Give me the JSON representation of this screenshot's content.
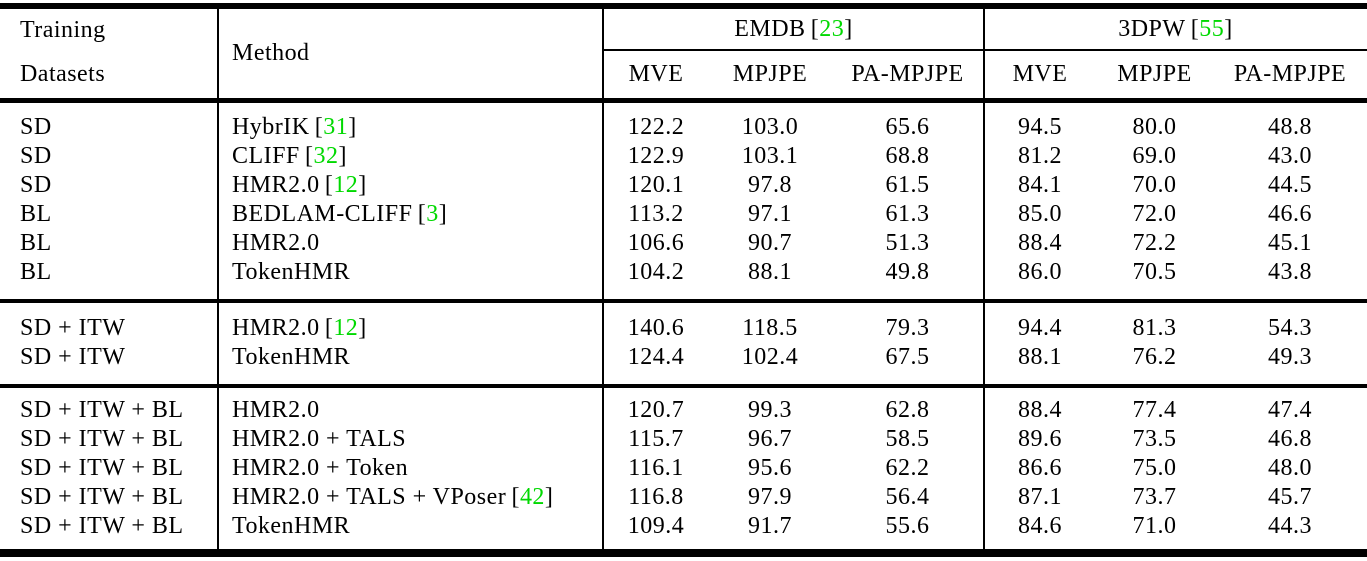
{
  "colors": {
    "citation_green": "#00D900",
    "text": "#000000",
    "background": "#ffffff"
  },
  "punctuation": {
    "bracket_open": "[",
    "bracket_close": "]"
  },
  "header": {
    "col1_line1": "Training",
    "col1_line2": "Datasets",
    "method_label": "Method",
    "groups": [
      {
        "name": "EMDB",
        "cite": "23",
        "subcols": [
          "MVE",
          "MPJPE",
          "PA-MPJPE"
        ]
      },
      {
        "name": "3DPW",
        "cite": "55",
        "subcols": [
          "MVE",
          "MPJPE",
          "PA-MPJPE"
        ]
      }
    ]
  },
  "blocks": [
    {
      "rows": [
        {
          "training": "SD",
          "method": "HybrIK",
          "cite": "31",
          "values": [
            "122.2",
            "103.0",
            "65.6",
            "94.5",
            "80.0",
            "48.8"
          ]
        },
        {
          "training": "SD",
          "method": "CLIFF",
          "cite": "32",
          "values": [
            "122.9",
            "103.1",
            "68.8",
            "81.2",
            "69.0",
            "43.0"
          ]
        },
        {
          "training": "SD",
          "method": "HMR2.0",
          "cite": "12",
          "values": [
            "120.1",
            "97.8",
            "61.5",
            "84.1",
            "70.0",
            "44.5"
          ]
        },
        {
          "training": "BL",
          "method": "BEDLAM-CLIFF",
          "cite": "3",
          "values": [
            "113.2",
            "97.1",
            "61.3",
            "85.0",
            "72.0",
            "46.6"
          ]
        },
        {
          "training": "BL",
          "method": "HMR2.0",
          "cite": null,
          "values": [
            "106.6",
            "90.7",
            "51.3",
            "88.4",
            "72.2",
            "45.1"
          ]
        },
        {
          "training": "BL",
          "method": "TokenHMR",
          "cite": null,
          "values": [
            "104.2",
            "88.1",
            "49.8",
            "86.0",
            "70.5",
            "43.8"
          ]
        }
      ]
    },
    {
      "rows": [
        {
          "training": "SD + ITW",
          "method": "HMR2.0",
          "cite": "12",
          "values": [
            "140.6",
            "118.5",
            "79.3",
            "94.4",
            "81.3",
            "54.3"
          ]
        },
        {
          "training": "SD + ITW",
          "method": "TokenHMR",
          "cite": null,
          "values": [
            "124.4",
            "102.4",
            "67.5",
            "88.1",
            "76.2",
            "49.3"
          ]
        }
      ]
    },
    {
      "rows": [
        {
          "training": "SD + ITW + BL",
          "method": "HMR2.0",
          "cite": null,
          "values": [
            "120.7",
            "99.3",
            "62.8",
            "88.4",
            "77.4",
            "47.4"
          ]
        },
        {
          "training": "SD + ITW + BL",
          "method": "HMR2.0 + TALS",
          "cite": null,
          "values": [
            "115.7",
            "96.7",
            "58.5",
            "89.6",
            "73.5",
            "46.8"
          ]
        },
        {
          "training": "SD + ITW + BL",
          "method": "HMR2.0 + Token",
          "cite": null,
          "values": [
            "116.1",
            "95.6",
            "62.2",
            "86.6",
            "75.0",
            "48.0"
          ]
        },
        {
          "training": "SD + ITW + BL",
          "method": "HMR2.0 + TALS + VPoser",
          "cite": "42",
          "values": [
            "116.8",
            "97.9",
            "56.4",
            "87.1",
            "73.7",
            "45.7"
          ]
        },
        {
          "training": "SD + ITW + BL",
          "method": "TokenHMR",
          "cite": null,
          "values": [
            "109.4",
            "91.7",
            "55.6",
            "84.6",
            "71.0",
            "44.3"
          ]
        }
      ]
    }
  ]
}
